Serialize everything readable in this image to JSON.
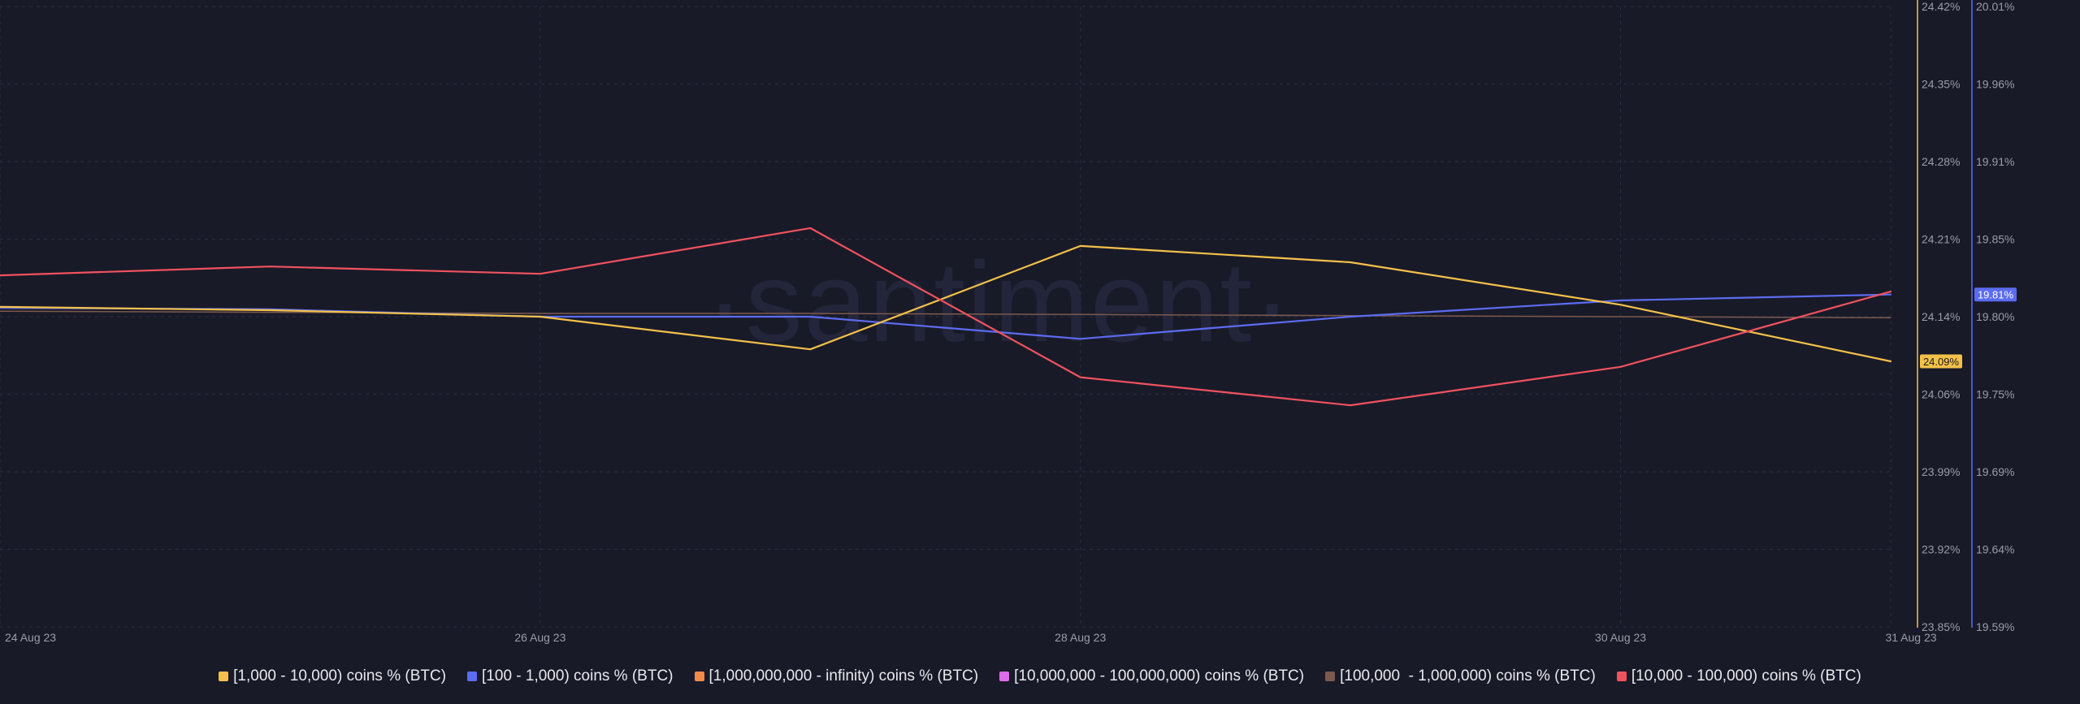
{
  "chart_data": {
    "type": "line",
    "watermark": "·santiment·",
    "x": [
      "24 Aug 23",
      "25 Aug 23",
      "26 Aug 23",
      "27 Aug 23",
      "28 Aug 23",
      "29 Aug 23",
      "30 Aug 23",
      "31 Aug 23"
    ],
    "x_tick_labels": [
      "24 Aug 23",
      "26 Aug 23",
      "28 Aug 23",
      "30 Aug 23",
      "31 Aug 23"
    ],
    "axes": {
      "left_price_axis": {
        "color": "#f3c14a",
        "ylim": [
          23.85,
          24.42
        ],
        "tick_labels": [
          "24.42%",
          "24.35%",
          "24.28%",
          "24.21%",
          "24.14%",
          "24.06%",
          "23.99%",
          "23.92%",
          "23.85%"
        ],
        "current_badge": "24.09%"
      },
      "right_price_axis": {
        "color": "#5b6cf0",
        "ylim": [
          19.59,
          20.01
        ],
        "tick_labels": [
          "20.01%",
          "19.96%",
          "19.91%",
          "19.85%",
          "19.80%",
          "19.75%",
          "19.69%",
          "19.64%",
          "19.59%"
        ],
        "current_badge": "19.81%"
      }
    },
    "grid": true,
    "series": [
      {
        "name": "[1,000 - 10,000) coins % (BTC)",
        "color": "#f3c14a",
        "axis": "left",
        "values": [
          24.144,
          24.141,
          24.135,
          24.105,
          24.2,
          24.185,
          24.146,
          24.094
        ]
      },
      {
        "name": "[100 - 1,000) coins % (BTC)",
        "color": "#5b6cf0",
        "axis": "right",
        "values": [
          19.806,
          19.805,
          19.8,
          19.8,
          19.785,
          19.8,
          19.811,
          19.815
        ]
      },
      {
        "name": "[1,000,000,000 - infinity) coins % (BTC)",
        "color": "#f08a4b",
        "axis": "left",
        "values": [
          null,
          null,
          null,
          null,
          null,
          null,
          null,
          null
        ]
      },
      {
        "name": "[10,000,000 - 100,000,000) coins % (BTC)",
        "color": "#de6be8",
        "axis": "left",
        "values": [
          null,
          null,
          null,
          null,
          null,
          null,
          null,
          null
        ]
      },
      {
        "name": "[100,000  - 1,000,000) coins % (BTC)",
        "color": "#7c5a4e",
        "axis": "left",
        "values": [
          24.14,
          24.139,
          24.138,
          24.138,
          24.137,
          24.136,
          24.135,
          24.134
        ]
      },
      {
        "name": "[10,000 - 100,000) coins % (BTC)",
        "color": "#f0525f",
        "axis": "right",
        "values": [
          19.828,
          19.834,
          19.829,
          19.86,
          19.759,
          19.74,
          19.766,
          19.817
        ]
      }
    ]
  }
}
